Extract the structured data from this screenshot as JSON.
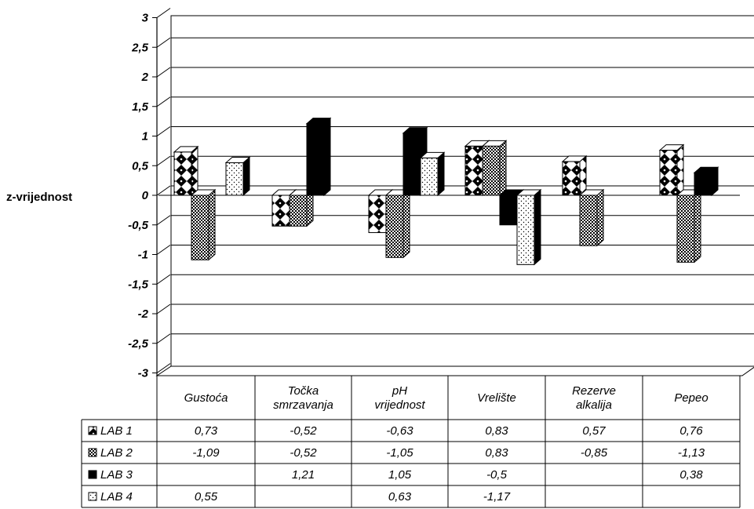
{
  "chart_data": {
    "type": "bar",
    "title": "",
    "xlabel": "",
    "ylabel": "z-vrijednost",
    "ylim": [
      -3,
      3
    ],
    "yticks": [
      "3",
      "2,5",
      "2",
      "1,5",
      "1",
      "0,5",
      "0",
      "-0,5",
      "-1",
      "-1,5",
      "-2",
      "-2,5",
      "-3"
    ],
    "grid": true,
    "legend": "data-table-left",
    "categories": [
      [
        "Gustoća"
      ],
      [
        "Točka",
        "smrzavanja"
      ],
      [
        "pH",
        "vrijednost"
      ],
      [
        "Vrelište"
      ],
      [
        "Rezerve",
        "alkalija"
      ],
      [
        "Pepeo"
      ]
    ],
    "series": [
      {
        "name": "LAB 1",
        "pattern": "diamond-checker",
        "values": [
          0.73,
          -0.52,
          -0.63,
          0.83,
          0.57,
          0.76
        ],
        "labels": [
          "0,73",
          "-0,52",
          "-0,63",
          "0,83",
          "0,57",
          "0,76"
        ]
      },
      {
        "name": "LAB 2",
        "pattern": "fine-checker",
        "values": [
          -1.09,
          -0.52,
          -1.05,
          0.83,
          -0.85,
          -1.13
        ],
        "labels": [
          "-1,09",
          "-0,52",
          "-1,05",
          "0,83",
          "-0,85",
          "-1,13"
        ]
      },
      {
        "name": "LAB 3",
        "pattern": "solid-black",
        "values": [
          null,
          1.21,
          1.05,
          -0.5,
          null,
          0.38
        ],
        "labels": [
          "",
          "1,21",
          "1,05",
          "-0,5",
          "",
          "0,38"
        ]
      },
      {
        "name": "LAB 4",
        "pattern": "sparse-dots",
        "values": [
          0.55,
          null,
          0.63,
          -1.17,
          null,
          null
        ],
        "labels": [
          "0,55",
          "",
          "0,63",
          "-1,17",
          "",
          ""
        ]
      }
    ]
  }
}
